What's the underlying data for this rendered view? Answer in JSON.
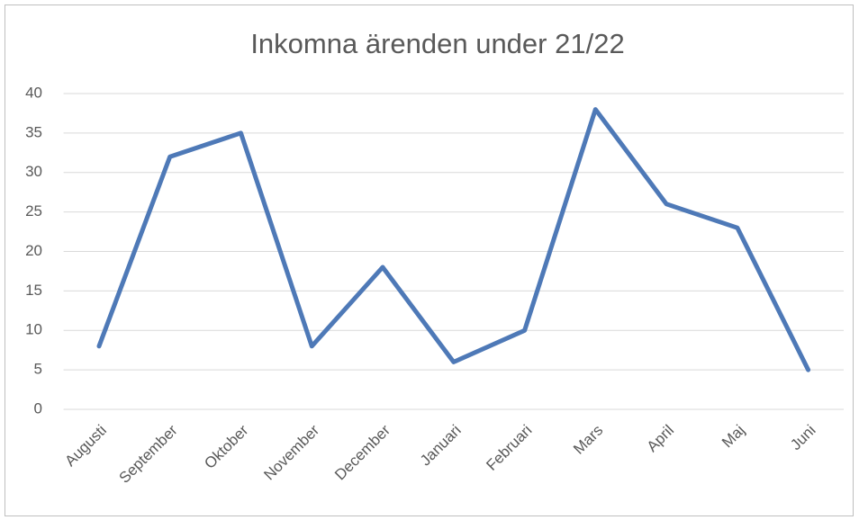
{
  "chart_data": {
    "type": "line",
    "title": "Inkomna ärenden under 21/22",
    "categories": [
      "Augusti",
      "September",
      "Oktober",
      "November",
      "December",
      "Januari",
      "Februari",
      "Mars",
      "April",
      "Maj",
      "Juni"
    ],
    "values": [
      8,
      32,
      35,
      8,
      18,
      6,
      10,
      38,
      26,
      23,
      5
    ],
    "color": "#4e79b7",
    "ylim": [
      0,
      40
    ],
    "yticks": [
      0,
      5,
      10,
      15,
      20,
      25,
      30,
      35,
      40
    ],
    "grid": true
  }
}
